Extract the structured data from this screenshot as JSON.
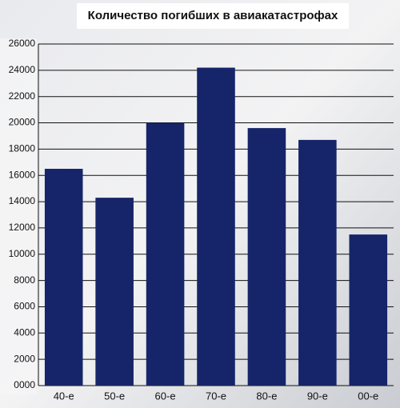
{
  "chart_data": {
    "type": "bar",
    "title": "Количество погибших в авиакатастрофах",
    "categories": [
      "40-е",
      "50-е",
      "60-е",
      "70-е",
      "80-е",
      "90-е",
      "00-е"
    ],
    "values": [
      16500,
      14300,
      20000,
      24200,
      19600,
      18700,
      11500
    ],
    "color": "#162569",
    "ylim": [
      0,
      26000
    ],
    "yticks": [
      {
        "value": 0,
        "label": "0000"
      },
      2000,
      4000,
      6000,
      8000,
      10000,
      12000,
      14000,
      16000,
      18000,
      20000,
      22000,
      24000,
      26000
    ],
    "grid": true
  }
}
